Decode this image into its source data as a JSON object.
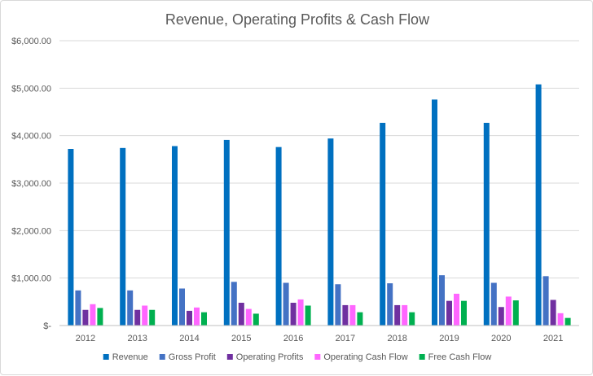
{
  "chart_data": {
    "type": "bar",
    "title": "Revenue, Operating Profits & Cash Flow",
    "xlabel": "",
    "ylabel": "",
    "categories": [
      "2012",
      "2013",
      "2014",
      "2015",
      "2016",
      "2017",
      "2018",
      "2019",
      "2020",
      "2021"
    ],
    "y_ticks": [
      "$-",
      "$1,000.00",
      "$2,000.00",
      "$3,000.00",
      "$4,000.00",
      "$5,000.00",
      "$6,000.00"
    ],
    "ylim": [
      0,
      6000
    ],
    "grid": true,
    "legend_position": "bottom",
    "series": [
      {
        "name": "Revenue",
        "color": "#0070c0",
        "values": [
          3720,
          3740,
          3780,
          3910,
          3760,
          3940,
          4270,
          4760,
          4270,
          5080
        ]
      },
      {
        "name": "Gross Profit",
        "color": "#4472c4",
        "values": [
          740,
          740,
          780,
          920,
          900,
          870,
          890,
          1060,
          900,
          1040
        ]
      },
      {
        "name": "Operating Profits",
        "color": "#7030a0",
        "values": [
          330,
          330,
          310,
          480,
          480,
          430,
          430,
          520,
          390,
          540
        ]
      },
      {
        "name": "Operating Cash Flow",
        "color": "#ff66ff",
        "values": [
          450,
          420,
          380,
          350,
          550,
          430,
          430,
          670,
          610,
          260
        ]
      },
      {
        "name": "Free Cash Flow",
        "color": "#00b050",
        "values": [
          370,
          330,
          280,
          250,
          420,
          280,
          280,
          520,
          530,
          160
        ]
      }
    ]
  }
}
